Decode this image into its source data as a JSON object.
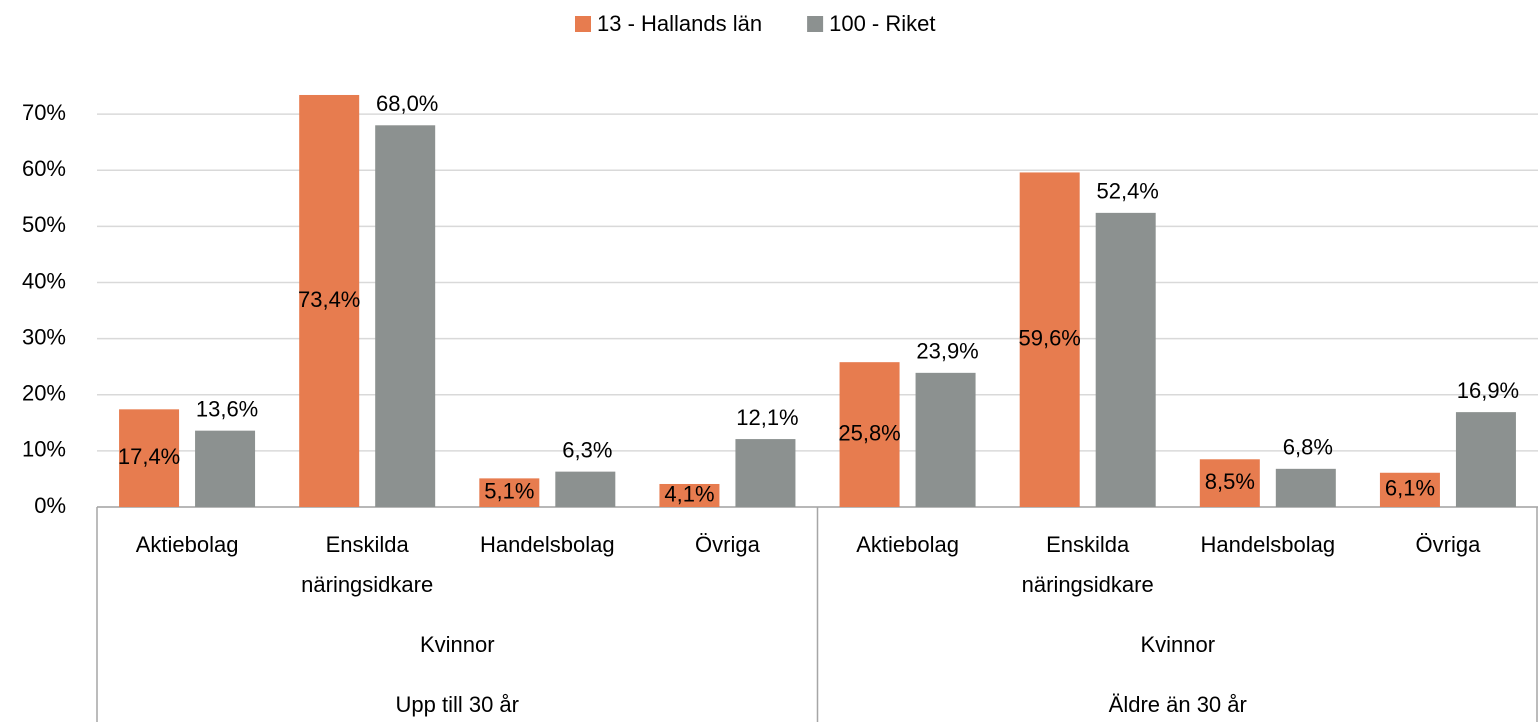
{
  "chart_data": {
    "type": "bar",
    "categories": [
      "Aktiebolag",
      "Enskilda näringsidkare",
      "Handelsbolag",
      "Övriga",
      "Aktiebolag",
      "Enskilda näringsidkare",
      "Handelsbolag",
      "Övriga"
    ],
    "category_groups": [
      "Kvinnor",
      "Kvinnor"
    ],
    "category_supergroups": [
      "Upp till 30 år",
      "Äldre än 30 år"
    ],
    "series": [
      {
        "name": "13 - Hallands län",
        "color": "#e77c4f",
        "values": [
          17.4,
          73.4,
          5.1,
          4.1,
          25.8,
          59.6,
          8.5,
          6.1
        ],
        "value_labels": [
          "17,4%",
          "73,4%",
          "5,1%",
          "4,1%",
          "25,8%",
          "59,6%",
          "8,5%",
          "6,1%"
        ]
      },
      {
        "name": "100 - Riket",
        "color": "#8c9190",
        "values": [
          13.6,
          68.0,
          6.3,
          12.1,
          23.9,
          52.4,
          6.8,
          16.9
        ],
        "value_labels": [
          "13,6%",
          "68,0%",
          "6,3%",
          "12,1%",
          "23,9%",
          "52,4%",
          "6,8%",
          "16,9%"
        ]
      }
    ],
    "ylim": [
      0,
      75
    ],
    "yticks": [
      {
        "value": 0,
        "label": "0%"
      },
      {
        "value": 10,
        "label": "10%"
      },
      {
        "value": 20,
        "label": "20%"
      },
      {
        "value": 30,
        "label": "30%"
      },
      {
        "value": 40,
        "label": "40%"
      },
      {
        "value": 50,
        "label": "50%"
      },
      {
        "value": 60,
        "label": "60%"
      },
      {
        "value": 70,
        "label": "70%"
      }
    ],
    "grid": true,
    "legend": "top"
  }
}
